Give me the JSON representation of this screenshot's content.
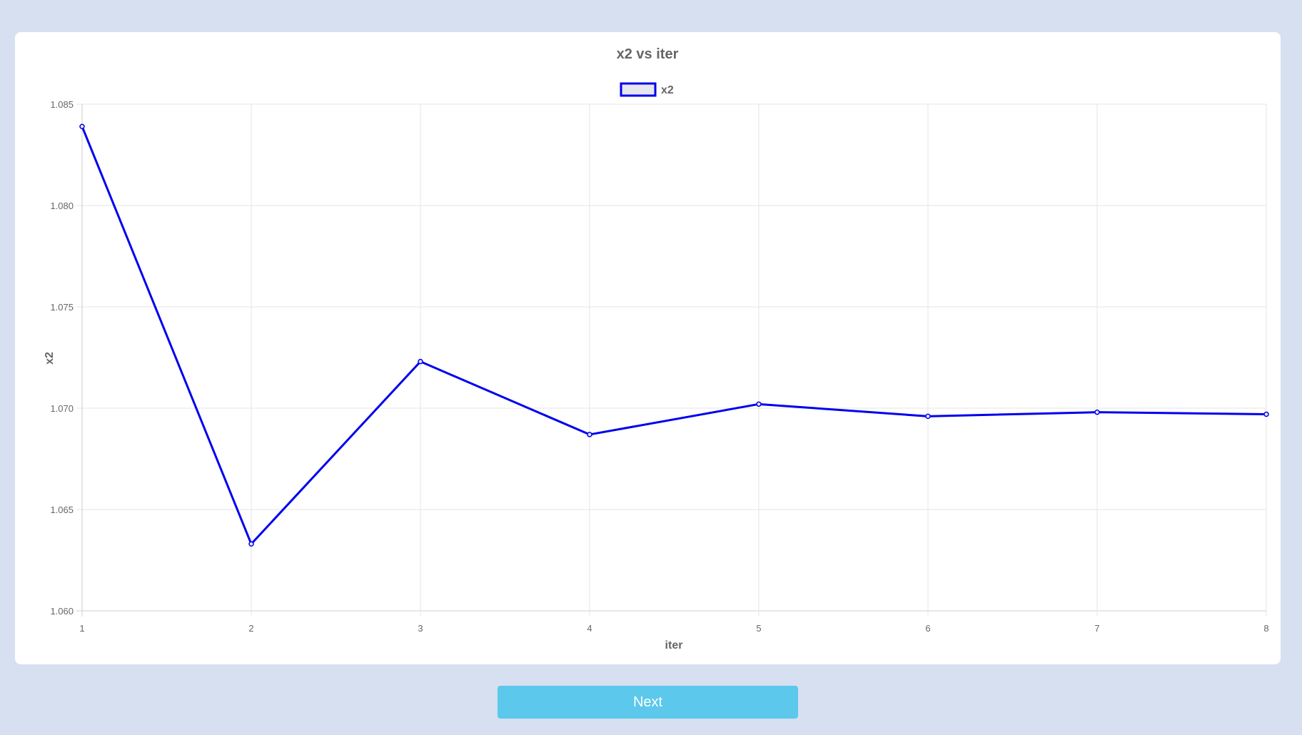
{
  "chart_data": {
    "type": "line",
    "title": "x2 vs iter",
    "xlabel": "iter",
    "ylabel": "x2",
    "x": [
      1,
      2,
      3,
      4,
      5,
      6,
      7,
      8
    ],
    "series": [
      {
        "name": "x2",
        "values": [
          1.0839,
          1.0633,
          1.0723,
          1.0687,
          1.0702,
          1.0696,
          1.0698,
          1.0697
        ],
        "color": "#0000ee",
        "legend_fill": "#e6e6ee"
      }
    ],
    "xlim": [
      1,
      8
    ],
    "ylim": [
      1.06,
      1.085
    ],
    "yticks": [
      "1.060",
      "1.065",
      "1.070",
      "1.075",
      "1.080",
      "1.085"
    ],
    "xticks": [
      "1",
      "2",
      "3",
      "4",
      "5",
      "6",
      "7",
      "8"
    ],
    "grid": true,
    "legend_position": "top-center"
  },
  "controls": {
    "next_label": "Next"
  },
  "colors": {
    "page_background": "#d6e0f0",
    "card_background": "#ffffff",
    "button_background": "#5bc8ec"
  }
}
